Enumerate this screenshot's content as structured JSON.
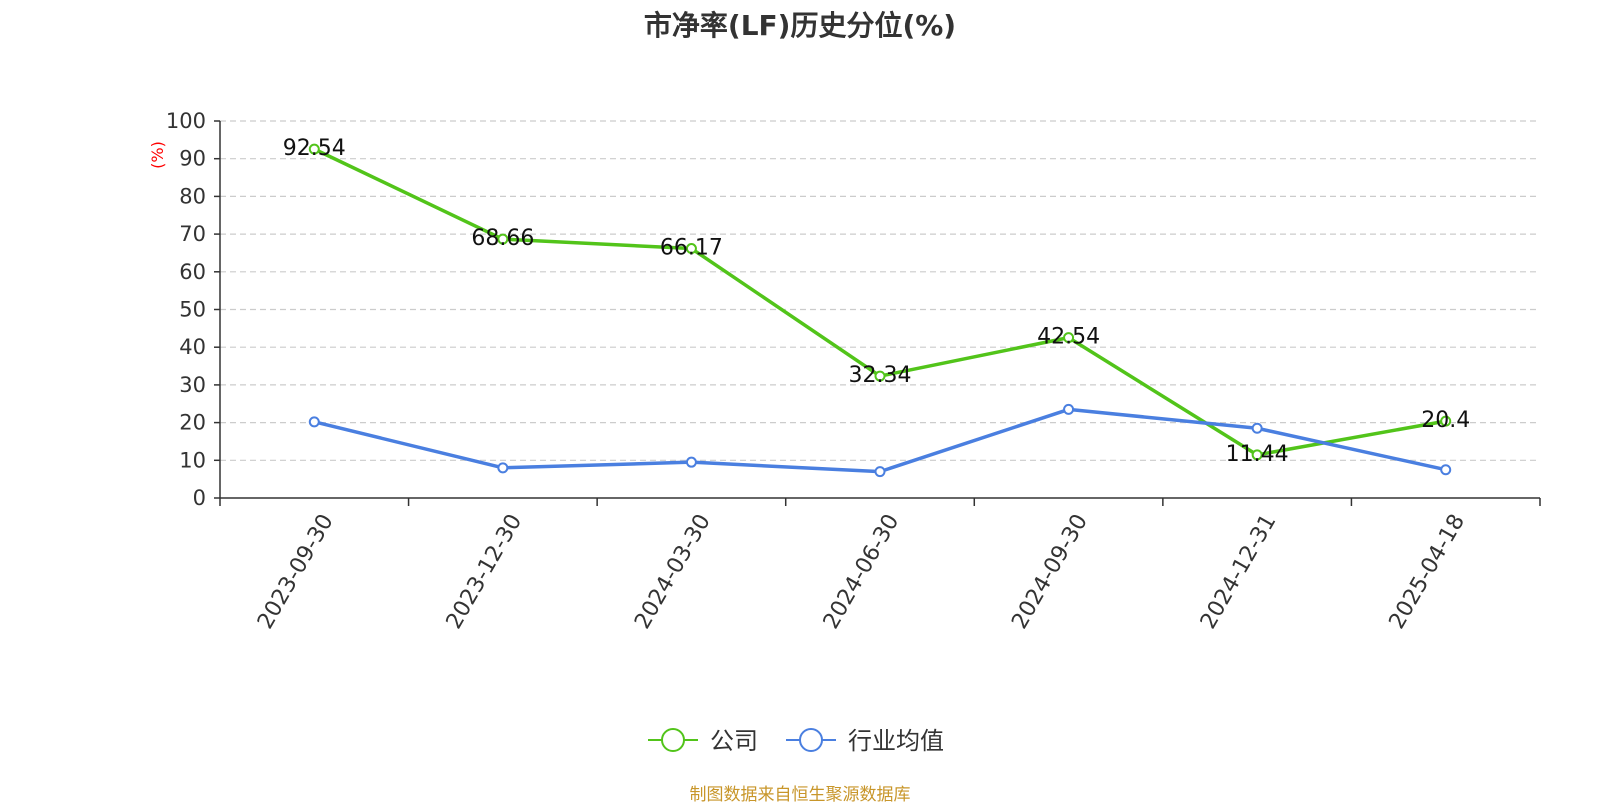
{
  "chart_data": {
    "type": "line",
    "title": "市净率(LF)历史分位(%)",
    "ylabel": "(%)",
    "ylabel_color": "#ff0000",
    "xlabel": "",
    "x": [
      "2023-09-30",
      "2023-12-30",
      "2024-03-30",
      "2024-06-30",
      "2024-09-30",
      "2024-12-31",
      "2025-04-18"
    ],
    "ylim": [
      0,
      100
    ],
    "yticks": [
      0,
      10,
      20,
      30,
      40,
      50,
      60,
      70,
      80,
      90,
      100
    ],
    "grid": true,
    "legend_position": "bottom",
    "series": [
      {
        "name": "公司",
        "color": "#52c41a",
        "values": [
          92.54,
          68.66,
          66.17,
          32.34,
          42.54,
          11.44,
          20.4
        ],
        "labels": [
          "92.54",
          "68.66",
          "66.17",
          "32.34",
          "42.54",
          "11.44",
          "20.4"
        ]
      },
      {
        "name": "行业均值",
        "color": "#4a7fe0",
        "values": [
          20.2,
          8.0,
          9.5,
          7.0,
          23.5,
          18.5,
          7.5
        ]
      }
    ]
  },
  "footer": {
    "source": "制图数据来自恒生聚源数据库"
  }
}
